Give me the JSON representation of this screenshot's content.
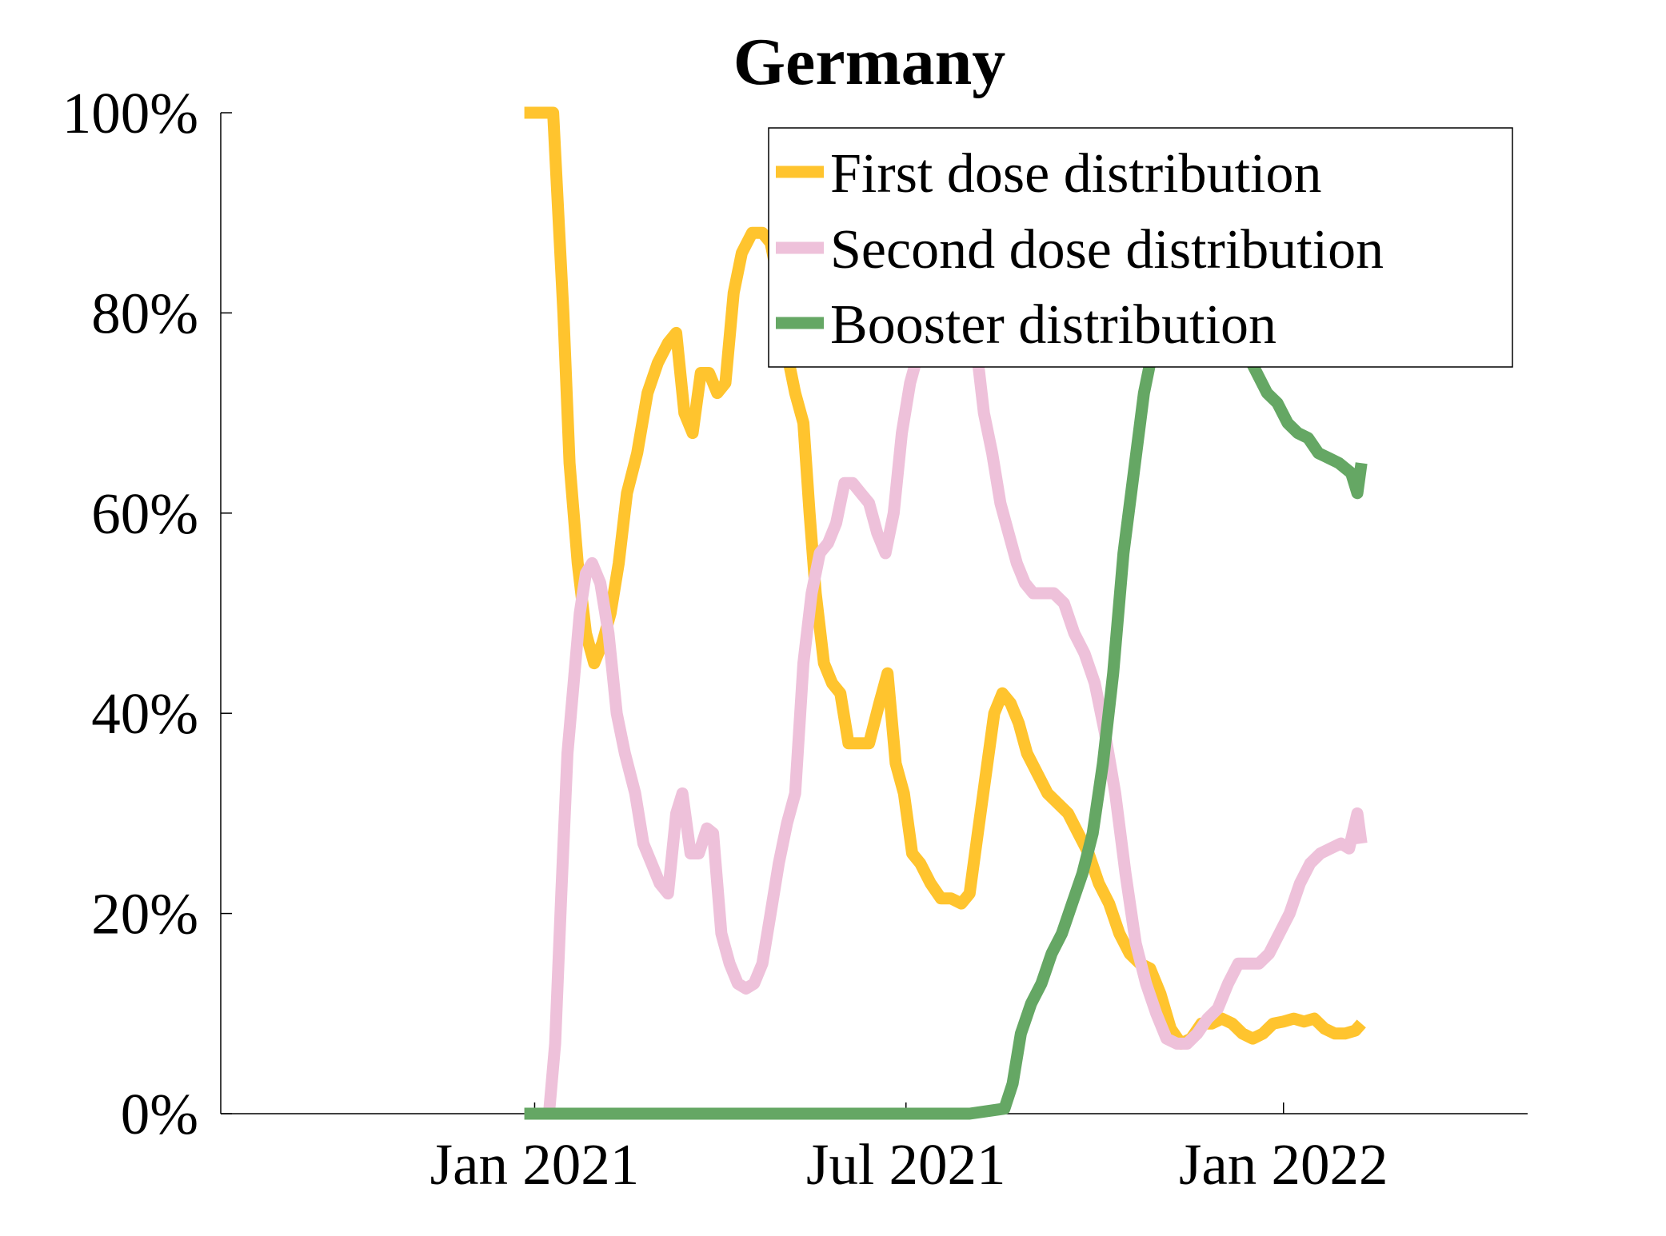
{
  "chart_data": {
    "type": "line",
    "title": "Germany",
    "xlabel": "",
    "ylabel": "",
    "xlim": [
      "2020-08-01",
      "2022-04-30"
    ],
    "ylim": [
      0,
      100
    ],
    "x_ticks": [
      "2021-01-01",
      "2021-07-01",
      "2022-01-01"
    ],
    "x_tick_labels": [
      "Jan 2021",
      "Jul 2021",
      "Jan 2022"
    ],
    "y_ticks": [
      0,
      20,
      40,
      60,
      80,
      100
    ],
    "y_tick_labels": [
      "0%",
      "20%",
      "40%",
      "60%",
      "80%",
      "100%"
    ],
    "grid": false,
    "legend_position": "top-right",
    "series": [
      {
        "name": "First dose distribution",
        "color": "#FFC42E",
        "points": [
          [
            "2020-12-27",
            100
          ],
          [
            "2021-01-01",
            100
          ],
          [
            "2021-01-05",
            100
          ],
          [
            "2021-01-10",
            100
          ],
          [
            "2021-01-12",
            92
          ],
          [
            "2021-01-15",
            80
          ],
          [
            "2021-01-18",
            65
          ],
          [
            "2021-01-22",
            55
          ],
          [
            "2021-01-26",
            48
          ],
          [
            "2021-01-30",
            45
          ],
          [
            "2021-02-03",
            47
          ],
          [
            "2021-02-07",
            50
          ],
          [
            "2021-02-11",
            55
          ],
          [
            "2021-02-15",
            62
          ],
          [
            "2021-02-20",
            66
          ],
          [
            "2021-02-25",
            72
          ],
          [
            "2021-03-02",
            75
          ],
          [
            "2021-03-07",
            77
          ],
          [
            "2021-03-11",
            78
          ],
          [
            "2021-03-15",
            70
          ],
          [
            "2021-03-19",
            68
          ],
          [
            "2021-03-23",
            74
          ],
          [
            "2021-03-27",
            74
          ],
          [
            "2021-03-31",
            72
          ],
          [
            "2021-04-04",
            73
          ],
          [
            "2021-04-08",
            82
          ],
          [
            "2021-04-12",
            86
          ],
          [
            "2021-04-17",
            88
          ],
          [
            "2021-04-22",
            88
          ],
          [
            "2021-04-26",
            87
          ],
          [
            "2021-04-30",
            83
          ],
          [
            "2021-05-04",
            76
          ],
          [
            "2021-05-08",
            72
          ],
          [
            "2021-05-12",
            69
          ],
          [
            "2021-05-15",
            60
          ],
          [
            "2021-05-18",
            52
          ],
          [
            "2021-05-22",
            45
          ],
          [
            "2021-05-26",
            43
          ],
          [
            "2021-05-30",
            42
          ],
          [
            "2021-06-03",
            37
          ],
          [
            "2021-06-08",
            37
          ],
          [
            "2021-06-13",
            37
          ],
          [
            "2021-06-18",
            41
          ],
          [
            "2021-06-22",
            44
          ],
          [
            "2021-06-26",
            35
          ],
          [
            "2021-06-30",
            32
          ],
          [
            "2021-07-04",
            26
          ],
          [
            "2021-07-08",
            25
          ],
          [
            "2021-07-13",
            23
          ],
          [
            "2021-07-18",
            21.5
          ],
          [
            "2021-07-23",
            21.5
          ],
          [
            "2021-07-28",
            21
          ],
          [
            "2021-08-01",
            22
          ],
          [
            "2021-08-05",
            28
          ],
          [
            "2021-08-09",
            34
          ],
          [
            "2021-08-13",
            40
          ],
          [
            "2021-08-17",
            42
          ],
          [
            "2021-08-21",
            41
          ],
          [
            "2021-08-25",
            39
          ],
          [
            "2021-08-29",
            36
          ],
          [
            "2021-09-03",
            34
          ],
          [
            "2021-09-08",
            32
          ],
          [
            "2021-09-13",
            31
          ],
          [
            "2021-09-18",
            30
          ],
          [
            "2021-09-23",
            28
          ],
          [
            "2021-09-28",
            26
          ],
          [
            "2021-10-03",
            23
          ],
          [
            "2021-10-08",
            21
          ],
          [
            "2021-10-13",
            18
          ],
          [
            "2021-10-18",
            16
          ],
          [
            "2021-10-23",
            15
          ],
          [
            "2021-10-28",
            14.5
          ],
          [
            "2021-11-02",
            12
          ],
          [
            "2021-11-07",
            8.5
          ],
          [
            "2021-11-12",
            7
          ],
          [
            "2021-11-17",
            7.5
          ],
          [
            "2021-11-22",
            9
          ],
          [
            "2021-11-27",
            9
          ],
          [
            "2021-12-02",
            9.5
          ],
          [
            "2021-12-07",
            9
          ],
          [
            "2021-12-12",
            8
          ],
          [
            "2021-12-17",
            7.5
          ],
          [
            "2021-12-22",
            8
          ],
          [
            "2021-12-27",
            9
          ],
          [
            "2022-01-01",
            9.2
          ],
          [
            "2022-01-06",
            9.5
          ],
          [
            "2022-01-11",
            9.2
          ],
          [
            "2022-01-16",
            9.5
          ],
          [
            "2022-01-21",
            8.5
          ],
          [
            "2022-01-26",
            8
          ],
          [
            "2022-01-31",
            8
          ],
          [
            "2022-02-05",
            8.3
          ],
          [
            "2022-02-08",
            9
          ]
        ]
      },
      {
        "name": "Second dose distribution",
        "color": "#EEC1DA",
        "points": [
          [
            "2020-12-27",
            0
          ],
          [
            "2021-01-01",
            0
          ],
          [
            "2021-01-05",
            0
          ],
          [
            "2021-01-08",
            0
          ],
          [
            "2021-01-11",
            7
          ],
          [
            "2021-01-14",
            22
          ],
          [
            "2021-01-17",
            36
          ],
          [
            "2021-01-20",
            43
          ],
          [
            "2021-01-23",
            50
          ],
          [
            "2021-01-26",
            54
          ],
          [
            "2021-01-29",
            55
          ],
          [
            "2021-02-02",
            53
          ],
          [
            "2021-02-06",
            48
          ],
          [
            "2021-02-10",
            40
          ],
          [
            "2021-02-14",
            36
          ],
          [
            "2021-02-19",
            32
          ],
          [
            "2021-02-23",
            27
          ],
          [
            "2021-02-27",
            25
          ],
          [
            "2021-03-03",
            23
          ],
          [
            "2021-03-07",
            22
          ],
          [
            "2021-03-11",
            30
          ],
          [
            "2021-03-14",
            32
          ],
          [
            "2021-03-18",
            26
          ],
          [
            "2021-03-22",
            26
          ],
          [
            "2021-03-26",
            28.5
          ],
          [
            "2021-03-29",
            28
          ],
          [
            "2021-04-02",
            18
          ],
          [
            "2021-04-06",
            15
          ],
          [
            "2021-04-10",
            13
          ],
          [
            "2021-04-14",
            12.5
          ],
          [
            "2021-04-18",
            13
          ],
          [
            "2021-04-22",
            15
          ],
          [
            "2021-04-26",
            20
          ],
          [
            "2021-04-30",
            25
          ],
          [
            "2021-05-04",
            29
          ],
          [
            "2021-05-08",
            32
          ],
          [
            "2021-05-12",
            45
          ],
          [
            "2021-05-16",
            52
          ],
          [
            "2021-05-20",
            56
          ],
          [
            "2021-05-24",
            57
          ],
          [
            "2021-05-28",
            59
          ],
          [
            "2021-06-01",
            63
          ],
          [
            "2021-06-05",
            63
          ],
          [
            "2021-06-09",
            62
          ],
          [
            "2021-06-13",
            61
          ],
          [
            "2021-06-17",
            58
          ],
          [
            "2021-06-21",
            56
          ],
          [
            "2021-06-25",
            60
          ],
          [
            "2021-06-29",
            68
          ],
          [
            "2021-07-03",
            73
          ],
          [
            "2021-07-07",
            76
          ],
          [
            "2021-07-11",
            78
          ],
          [
            "2021-07-15",
            79
          ],
          [
            "2021-07-19",
            80
          ],
          [
            "2021-07-23",
            81
          ],
          [
            "2021-07-27",
            80
          ],
          [
            "2021-07-31",
            79
          ],
          [
            "2021-08-04",
            77
          ],
          [
            "2021-08-08",
            70
          ],
          [
            "2021-08-12",
            66
          ],
          [
            "2021-08-16",
            61
          ],
          [
            "2021-08-20",
            58
          ],
          [
            "2021-08-24",
            55
          ],
          [
            "2021-08-28",
            53
          ],
          [
            "2021-09-01",
            52
          ],
          [
            "2021-09-06",
            52
          ],
          [
            "2021-09-11",
            52
          ],
          [
            "2021-09-16",
            51
          ],
          [
            "2021-09-21",
            48
          ],
          [
            "2021-09-26",
            46
          ],
          [
            "2021-10-01",
            43
          ],
          [
            "2021-10-06",
            38
          ],
          [
            "2021-10-11",
            32
          ],
          [
            "2021-10-16",
            24
          ],
          [
            "2021-10-21",
            17
          ],
          [
            "2021-10-26",
            13
          ],
          [
            "2021-10-31",
            10
          ],
          [
            "2021-11-05",
            7.5
          ],
          [
            "2021-11-10",
            7
          ],
          [
            "2021-11-15",
            7
          ],
          [
            "2021-11-20",
            8
          ],
          [
            "2021-11-25",
            9.5
          ],
          [
            "2021-11-30",
            10.5
          ],
          [
            "2021-12-05",
            13
          ],
          [
            "2021-12-10",
            15
          ],
          [
            "2021-12-15",
            15
          ],
          [
            "2021-12-20",
            15
          ],
          [
            "2021-12-25",
            16
          ],
          [
            "2021-12-30",
            18
          ],
          [
            "2022-01-04",
            20
          ],
          [
            "2022-01-09",
            23
          ],
          [
            "2022-01-14",
            25
          ],
          [
            "2022-01-19",
            26
          ],
          [
            "2022-01-24",
            26.5
          ],
          [
            "2022-01-29",
            27
          ],
          [
            "2022-02-02",
            26.5
          ],
          [
            "2022-02-06",
            30
          ],
          [
            "2022-02-08",
            27
          ]
        ]
      },
      {
        "name": "Booster distribution",
        "color": "#65A764",
        "points": [
          [
            "2020-12-27",
            0
          ],
          [
            "2021-03-01",
            0
          ],
          [
            "2021-06-01",
            0
          ],
          [
            "2021-08-01",
            0
          ],
          [
            "2021-08-18",
            0.5
          ],
          [
            "2021-08-22",
            3
          ],
          [
            "2021-08-26",
            8
          ],
          [
            "2021-08-31",
            11
          ],
          [
            "2021-09-05",
            13
          ],
          [
            "2021-09-10",
            16
          ],
          [
            "2021-09-15",
            18
          ],
          [
            "2021-09-20",
            21
          ],
          [
            "2021-09-25",
            24
          ],
          [
            "2021-09-30",
            28
          ],
          [
            "2021-10-05",
            35
          ],
          [
            "2021-10-10",
            44
          ],
          [
            "2021-10-15",
            56
          ],
          [
            "2021-10-20",
            64
          ],
          [
            "2021-10-25",
            72
          ],
          [
            "2021-10-30",
            77
          ],
          [
            "2021-11-04",
            80
          ],
          [
            "2021-11-09",
            82
          ],
          [
            "2021-11-14",
            83
          ],
          [
            "2021-11-19",
            82
          ],
          [
            "2021-11-24",
            81
          ],
          [
            "2021-11-29",
            80
          ],
          [
            "2021-12-04",
            79
          ],
          [
            "2021-12-09",
            77
          ],
          [
            "2021-12-14",
            76
          ],
          [
            "2021-12-19",
            74
          ],
          [
            "2021-12-24",
            72
          ],
          [
            "2021-12-29",
            71
          ],
          [
            "2022-01-03",
            69
          ],
          [
            "2022-01-08",
            68
          ],
          [
            "2022-01-13",
            67.5
          ],
          [
            "2022-01-18",
            66
          ],
          [
            "2022-01-23",
            65.5
          ],
          [
            "2022-01-28",
            65
          ],
          [
            "2022-02-03",
            64
          ],
          [
            "2022-02-06",
            62
          ],
          [
            "2022-02-08",
            65
          ]
        ]
      }
    ]
  }
}
